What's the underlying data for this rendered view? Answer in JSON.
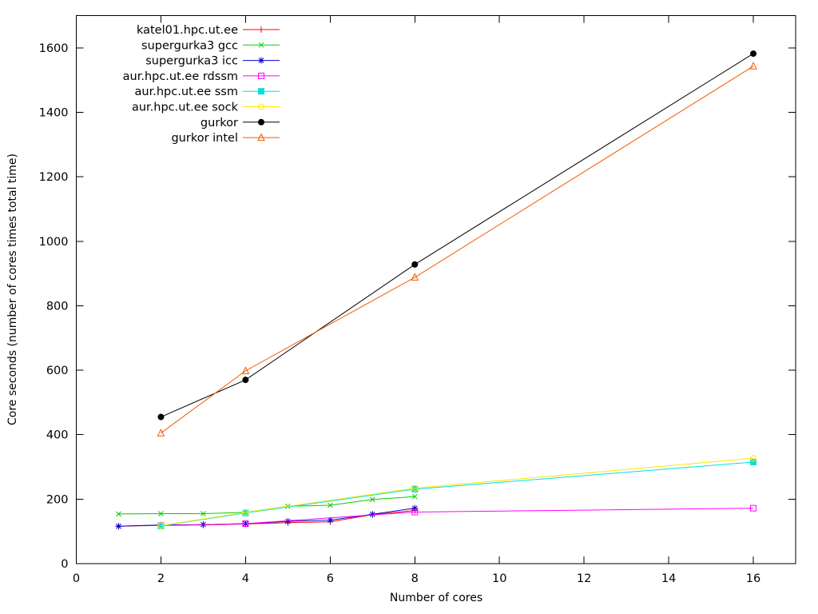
{
  "chart_data": {
    "type": "line",
    "title": "",
    "xlabel": "Number of cores",
    "ylabel": "Core seconds (number of cores times total time)",
    "xlim": [
      0,
      17
    ],
    "ylim": [
      0,
      1700
    ],
    "xticks": [
      0,
      2,
      4,
      6,
      8,
      10,
      12,
      14,
      16
    ],
    "yticks": [
      0,
      200,
      400,
      600,
      800,
      1000,
      1200,
      1400,
      1600
    ],
    "grid": false,
    "legend_position": "top-left-inside",
    "background_color": "#ffffff",
    "axis_color": "#000000",
    "series": [
      {
        "name": "katel01.hpc.ut.ee",
        "color": "#ff0000",
        "marker": "plus",
        "x": [
          1,
          2,
          3,
          4,
          5,
          6,
          7,
          8
        ],
        "y": [
          116,
          119,
          120,
          123,
          127,
          130,
          152,
          165
        ]
      },
      {
        "name": "supergurka3 gcc",
        "color": "#00d000",
        "marker": "cross",
        "x": [
          1,
          2,
          3,
          4,
          5,
          6,
          7,
          8
        ],
        "y": [
          154,
          155,
          155,
          159,
          178,
          181,
          199,
          208
        ]
      },
      {
        "name": "supergurka3 icc",
        "color": "#0000cc",
        "marker": "asterisk",
        "x": [
          1,
          2,
          3,
          4,
          5,
          6,
          7,
          8
        ],
        "y": [
          116,
          120,
          121,
          124,
          131,
          135,
          153,
          172
        ]
      },
      {
        "name": "aur.hpc.ut.ee rdssm",
        "color": "#ff00ff",
        "marker": "square-open",
        "x": [
          2,
          4,
          8,
          16
        ],
        "y": [
          118,
          124,
          160,
          172
        ]
      },
      {
        "name": "aur.hpc.ut.ee ssm",
        "color": "#00e0e0",
        "marker": "square-filled",
        "x": [
          2,
          4,
          8,
          16
        ],
        "y": [
          117,
          157,
          231,
          315
        ]
      },
      {
        "name": "aur.hpc.ut.ee sock",
        "color": "#ffe800",
        "marker": "circle-open",
        "x": [
          2,
          4,
          8,
          16
        ],
        "y": [
          118,
          159,
          234,
          327
        ]
      },
      {
        "name": "gurkor",
        "color": "#000000",
        "marker": "circle-filled",
        "x": [
          2,
          4,
          8,
          16
        ],
        "y": [
          455,
          570,
          928,
          1582
        ]
      },
      {
        "name": "gurkor intel",
        "color": "#f25900",
        "marker": "triangle-open",
        "x": [
          2,
          4,
          8,
          16
        ],
        "y": [
          405,
          598,
          888,
          1543
        ]
      }
    ]
  }
}
